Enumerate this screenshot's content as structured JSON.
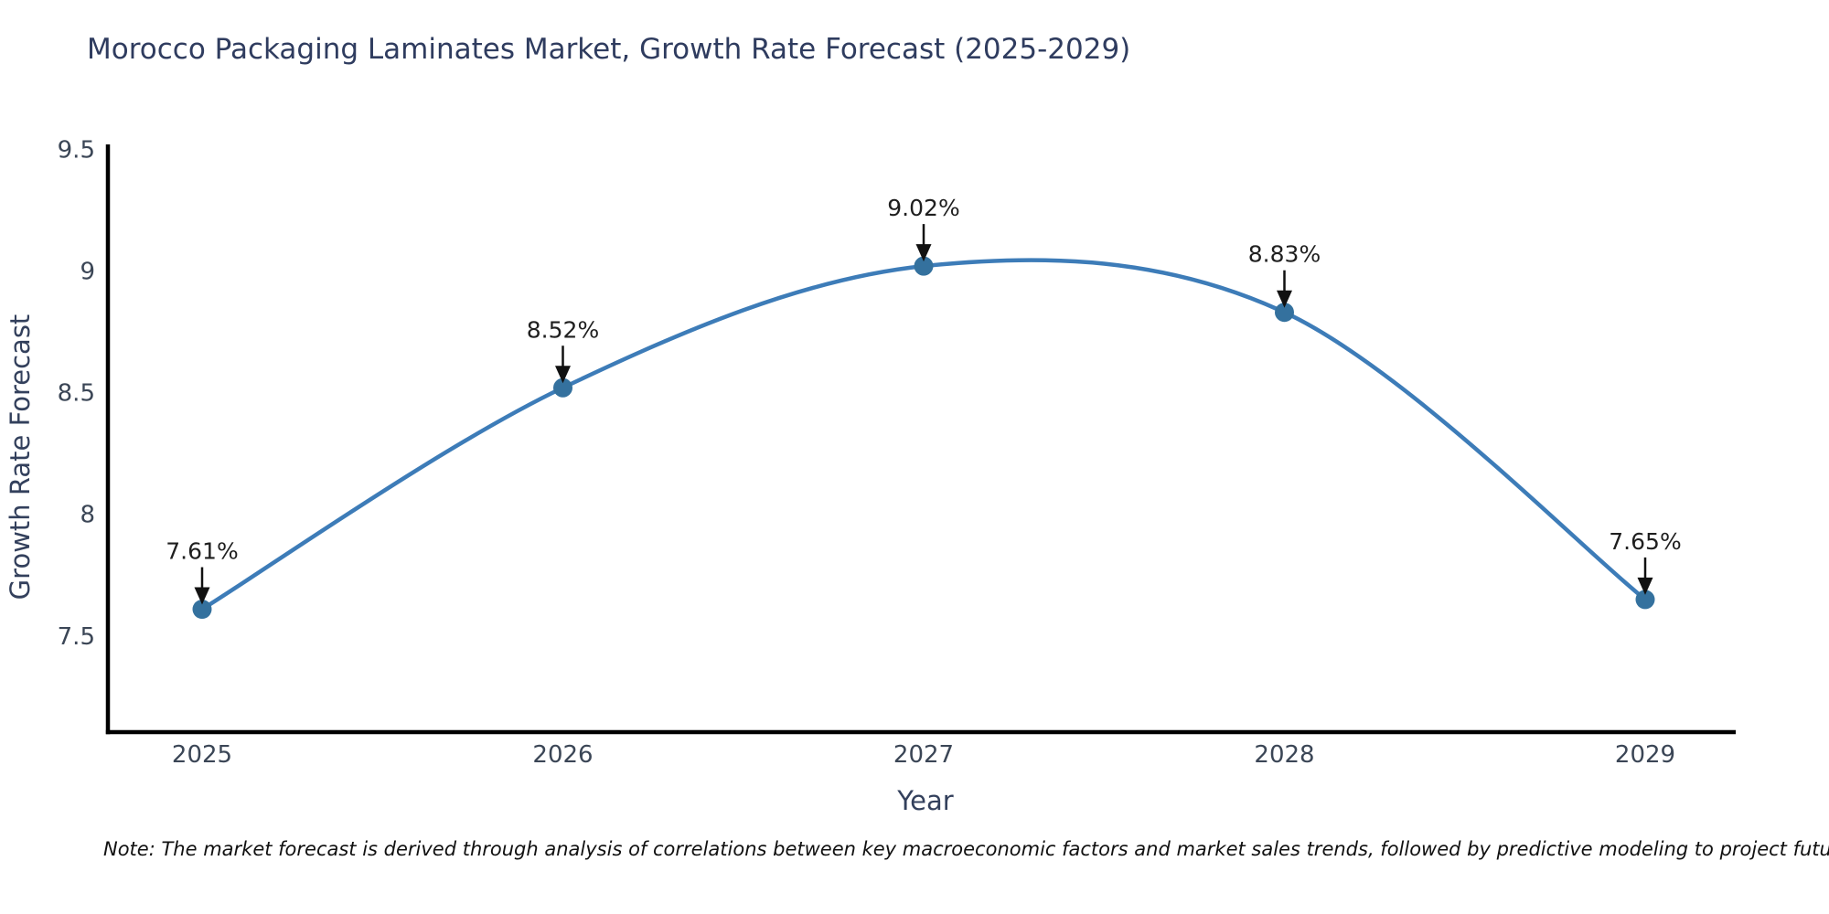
{
  "title": "Morocco Packaging Laminates Market, Growth Rate Forecast (2025-2029)",
  "note": "Note: The market forecast is derived through analysis of correlations between key macroeconomic factors and market sales trends, followed by predictive modeling to project future sales",
  "chart_data": {
    "type": "line",
    "title": "Morocco Packaging Laminates Market, Growth Rate Forecast (2025-2029)",
    "categories": [
      "2025",
      "2026",
      "2027",
      "2028",
      "2029"
    ],
    "series": [
      {
        "name": "Growth Rate Forecast",
        "values": [
          7.61,
          8.52,
          9.02,
          8.83,
          7.65
        ]
      }
    ],
    "point_labels": [
      "7.61%",
      "8.52%",
      "9.02%",
      "8.83%",
      "7.65%"
    ],
    "xlabel": "Year",
    "ylabel": "Growth Rate Forecast",
    "ytick_labels": [
      "7.5",
      "8",
      "8.5",
      "9",
      "9.5"
    ],
    "ytick_values": [
      7.5,
      8.0,
      8.5,
      9.0,
      9.5
    ],
    "ylim": [
      7.105,
      9.52
    ],
    "grid": false,
    "legend": "none",
    "curve": "smooth-spline",
    "annotation_style": "label-with-down-arrow",
    "colors": {
      "line": "#3d7cb8",
      "marker": "#34719e",
      "axis_spine": "#000000",
      "tick_label": "#3b4656",
      "title_text": "#2f3c5f",
      "annotation_text": "#1f1f1f",
      "annotation_arrow": "#111111",
      "note_text": "#111111",
      "background": "#ffffff"
    }
  }
}
